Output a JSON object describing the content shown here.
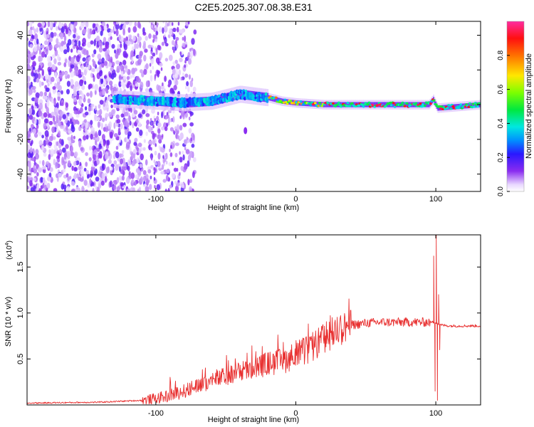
{
  "title": "C2E5.2025.307.08.38.E31",
  "chart_data": [
    {
      "type": "heatmap",
      "name": "spectrogram",
      "xlabel": "Height of straight line (km)",
      "ylabel": "Frequency (Hz)",
      "xlim": [
        -192,
        132
      ],
      "ylim": [
        -50,
        48
      ],
      "xticks": [
        -100,
        0,
        100
      ],
      "xtick_labels": [
        "-100",
        "0",
        "100"
      ],
      "yticks": [
        -40,
        -20,
        0,
        20,
        40
      ],
      "ytick_labels": [
        "-40",
        "-20",
        "0",
        "20",
        "40"
      ],
      "ridge": [
        {
          "x": -120,
          "f": 3
        },
        {
          "x": -100,
          "f": 2
        },
        {
          "x": -80,
          "f": 1
        },
        {
          "x": -60,
          "f": 2
        },
        {
          "x": -50,
          "f": 4
        },
        {
          "x": -40,
          "f": 6
        },
        {
          "x": -30,
          "f": 5
        },
        {
          "x": -20,
          "f": 4
        },
        {
          "x": -10,
          "f": 2
        },
        {
          "x": 0,
          "f": 1
        },
        {
          "x": 20,
          "f": 0
        },
        {
          "x": 60,
          "f": 0
        },
        {
          "x": 95,
          "f": 0
        },
        {
          "x": 98,
          "f": 3
        },
        {
          "x": 101,
          "f": -2
        },
        {
          "x": 132,
          "f": 0
        }
      ]
    },
    {
      "type": "colorbar",
      "name": "amplitude-colorbar",
      "label": "Normalized spectral amplitude",
      "range": [
        0,
        1
      ],
      "ticks": [
        0,
        0.2,
        0.4,
        0.6,
        0.8
      ],
      "tick_labels": [
        "0.0",
        "0.2",
        "0.4",
        "0.6",
        "0.8"
      ]
    },
    {
      "type": "line",
      "name": "snr",
      "xlabel": "Height of straight line (km)",
      "ylabel": "SNR (10 * v/v)",
      "y_multiplier": "(x10",
      "y_multiplier_exp": "4",
      "y_multiplier_close": ")",
      "xlim": [
        -192,
        132
      ],
      "ylim": [
        0,
        1.85
      ],
      "xticks": [
        -100,
        0,
        100
      ],
      "xtick_labels": [
        "-100",
        "0",
        "100"
      ],
      "yticks": [
        0.5,
        1.0,
        1.5
      ],
      "ytick_labels": [
        "0.5",
        "1.0",
        "1.5"
      ],
      "color": "#e83030",
      "x": [
        -192,
        -140,
        -110,
        -100,
        -90,
        -80,
        -70,
        -60,
        -50,
        -40,
        -30,
        -20,
        -10,
        0,
        10,
        20,
        30,
        40,
        50,
        60,
        70,
        80,
        90,
        95,
        100,
        103,
        110,
        120,
        132
      ],
      "y": [
        0.02,
        0.03,
        0.05,
        0.07,
        0.1,
        0.15,
        0.2,
        0.26,
        0.31,
        0.36,
        0.4,
        0.45,
        0.47,
        0.55,
        0.6,
        0.72,
        0.82,
        0.87,
        0.89,
        0.9,
        0.9,
        0.9,
        0.9,
        0.9,
        0.9,
        0.87,
        0.86,
        0.86,
        0.86
      ],
      "spikes": [
        {
          "x": 98.5,
          "y": 1.62
        },
        {
          "x": 99.5,
          "y": 0.15
        },
        {
          "x": 100.3,
          "y": 1.85
        },
        {
          "x": 101.2,
          "y": 0.05
        },
        {
          "x": 102.0,
          "y": 1.2
        },
        {
          "x": 102.8,
          "y": 0.6
        }
      ]
    }
  ]
}
